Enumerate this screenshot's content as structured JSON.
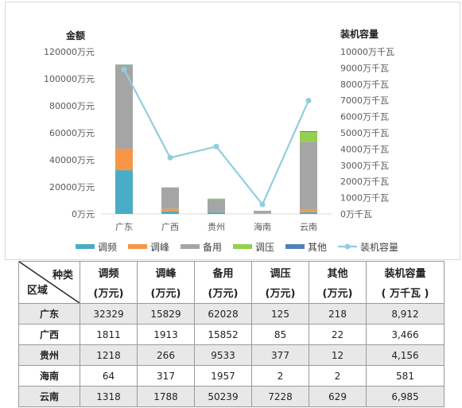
{
  "chart_data": {
    "type": "bar",
    "stacked": true,
    "categories": [
      "广东",
      "广西",
      "贵州",
      "海南",
      "云南"
    ],
    "left_axis": {
      "title": "金额",
      "ylim": [
        0,
        120000
      ],
      "ticks": [
        0,
        20000,
        40000,
        60000,
        80000,
        100000,
        120000
      ],
      "tick_labels": [
        "0万元",
        "20000万元",
        "40000万元",
        "60000万元",
        "80000万元",
        "100000万元",
        "120000万元"
      ]
    },
    "right_axis": {
      "title": "装机容量",
      "ylim": [
        0,
        10000
      ],
      "ticks": [
        0,
        1000,
        2000,
        3000,
        4000,
        5000,
        6000,
        7000,
        8000,
        9000,
        10000
      ],
      "tick_labels": [
        "0万千瓦",
        "1000万千瓦",
        "2000万千瓦",
        "3000万千瓦",
        "4000万千瓦",
        "5000万千瓦",
        "6000万千瓦",
        "7000万千瓦",
        "8000万千瓦",
        "9000万千瓦",
        "10000万千瓦"
      ]
    },
    "series": [
      {
        "name": "调频",
        "color": "#4bacc6",
        "axis": "left",
        "values": [
          32329,
          1811,
          1218,
          64,
          1318
        ]
      },
      {
        "name": "调峰",
        "color": "#f79646",
        "axis": "left",
        "values": [
          15829,
          1913,
          266,
          317,
          1788
        ]
      },
      {
        "name": "备用",
        "color": "#a5a5a5",
        "axis": "left",
        "values": [
          62028,
          15852,
          9533,
          1957,
          50239
        ]
      },
      {
        "name": "调压",
        "color": "#92d050",
        "axis": "left",
        "values": [
          125,
          85,
          377,
          2,
          7228
        ]
      },
      {
        "name": "其他",
        "color": "#4f81bd",
        "axis": "left",
        "values": [
          218,
          22,
          12,
          2,
          629
        ]
      }
    ],
    "line_series": {
      "name": "装机容量",
      "color": "#93cddd",
      "axis": "right",
      "values": [
        8912,
        3466,
        4156,
        581,
        6985
      ]
    },
    "legend_position": "bottom",
    "grid": false
  },
  "table": {
    "corner_top": "种类",
    "corner_bottom": "区域",
    "headers": [
      {
        "line1": "调频",
        "line2": "(万元)"
      },
      {
        "line1": "调峰",
        "line2": "(万元)"
      },
      {
        "line1": "备用",
        "line2": "(万元)"
      },
      {
        "line1": "调压",
        "line2": "(万元)"
      },
      {
        "line1": "其他",
        "line2": "(万元)"
      },
      {
        "line1": "装机容量",
        "line2": "( 万千瓦 )"
      }
    ],
    "rows": [
      {
        "region": "广东",
        "cells": [
          "32329",
          "15829",
          "62028",
          "125",
          "218",
          "8,912"
        ]
      },
      {
        "region": "广西",
        "cells": [
          "1811",
          "1913",
          "15852",
          "85",
          "22",
          "3,466"
        ]
      },
      {
        "region": "贵州",
        "cells": [
          "1218",
          "266",
          "9533",
          "377",
          "12",
          "4,156"
        ]
      },
      {
        "region": "海南",
        "cells": [
          "64",
          "317",
          "1957",
          "2",
          "2",
          "581"
        ]
      },
      {
        "region": "云南",
        "cells": [
          "1318",
          "1788",
          "50239",
          "7228",
          "629",
          "6,985"
        ]
      }
    ]
  }
}
